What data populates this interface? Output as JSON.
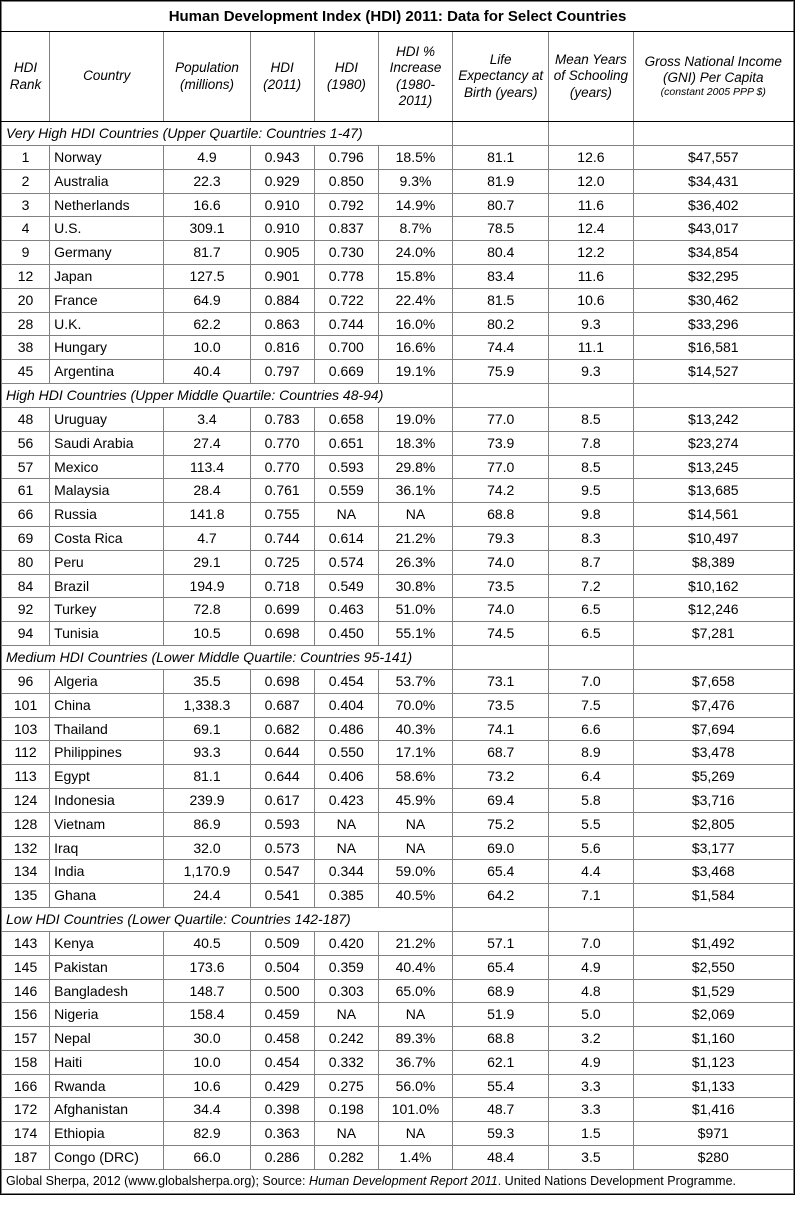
{
  "title": "Human Development Index (HDI) 2011: Data for Select Countries",
  "columns": [
    "HDI Rank",
    "Country",
    "Population (millions)",
    "HDI (2011)",
    "HDI (1980)",
    "HDI % Increase (1980-2011)",
    "Life Expectancy at Birth (years)",
    "Mean Years of Schooling (years)",
    "Gross National Income (GNI) Per Capita"
  ],
  "gni_sub": "(constant 2005 PPP $)",
  "sections": [
    {
      "label": "Very High HDI Countries (Upper Quartile: Countries 1-47)",
      "rows": [
        [
          "1",
          "Norway",
          "4.9",
          "0.943",
          "0.796",
          "18.5%",
          "81.1",
          "12.6",
          "$47,557"
        ],
        [
          "2",
          "Australia",
          "22.3",
          "0.929",
          "0.850",
          "9.3%",
          "81.9",
          "12.0",
          "$34,431"
        ],
        [
          "3",
          "Netherlands",
          "16.6",
          "0.910",
          "0.792",
          "14.9%",
          "80.7",
          "11.6",
          "$36,402"
        ],
        [
          "4",
          "U.S.",
          "309.1",
          "0.910",
          "0.837",
          "8.7%",
          "78.5",
          "12.4",
          "$43,017"
        ],
        [
          "9",
          "Germany",
          "81.7",
          "0.905",
          "0.730",
          "24.0%",
          "80.4",
          "12.2",
          "$34,854"
        ],
        [
          "12",
          "Japan",
          "127.5",
          "0.901",
          "0.778",
          "15.8%",
          "83.4",
          "11.6",
          "$32,295"
        ],
        [
          "20",
          "France",
          "64.9",
          "0.884",
          "0.722",
          "22.4%",
          "81.5",
          "10.6",
          "$30,462"
        ],
        [
          "28",
          "U.K.",
          "62.2",
          "0.863",
          "0.744",
          "16.0%",
          "80.2",
          "9.3",
          "$33,296"
        ],
        [
          "38",
          "Hungary",
          "10.0",
          "0.816",
          "0.700",
          "16.6%",
          "74.4",
          "11.1",
          "$16,581"
        ],
        [
          "45",
          "Argentina",
          "40.4",
          "0.797",
          "0.669",
          "19.1%",
          "75.9",
          "9.3",
          "$14,527"
        ]
      ]
    },
    {
      "label": "High HDI Countries (Upper Middle Quartile: Countries 48-94)",
      "rows": [
        [
          "48",
          "Uruguay",
          "3.4",
          "0.783",
          "0.658",
          "19.0%",
          "77.0",
          "8.5",
          "$13,242"
        ],
        [
          "56",
          "Saudi Arabia",
          "27.4",
          "0.770",
          "0.651",
          "18.3%",
          "73.9",
          "7.8",
          "$23,274"
        ],
        [
          "57",
          "Mexico",
          "113.4",
          "0.770",
          "0.593",
          "29.8%",
          "77.0",
          "8.5",
          "$13,245"
        ],
        [
          "61",
          "Malaysia",
          "28.4",
          "0.761",
          "0.559",
          "36.1%",
          "74.2",
          "9.5",
          "$13,685"
        ],
        [
          "66",
          "Russia",
          "141.8",
          "0.755",
          "NA",
          "NA",
          "68.8",
          "9.8",
          "$14,561"
        ],
        [
          "69",
          "Costa Rica",
          "4.7",
          "0.744",
          "0.614",
          "21.2%",
          "79.3",
          "8.3",
          "$10,497"
        ],
        [
          "80",
          "Peru",
          "29.1",
          "0.725",
          "0.574",
          "26.3%",
          "74.0",
          "8.7",
          "$8,389"
        ],
        [
          "84",
          "Brazil",
          "194.9",
          "0.718",
          "0.549",
          "30.8%",
          "73.5",
          "7.2",
          "$10,162"
        ],
        [
          "92",
          "Turkey",
          "72.8",
          "0.699",
          "0.463",
          "51.0%",
          "74.0",
          "6.5",
          "$12,246"
        ],
        [
          "94",
          "Tunisia",
          "10.5",
          "0.698",
          "0.450",
          "55.1%",
          "74.5",
          "6.5",
          "$7,281"
        ]
      ]
    },
    {
      "label": "Medium HDI Countries (Lower Middle Quartile: Countries 95-141)",
      "rows": [
        [
          "96",
          "Algeria",
          "35.5",
          "0.698",
          "0.454",
          "53.7%",
          "73.1",
          "7.0",
          "$7,658"
        ],
        [
          "101",
          "China",
          "1,338.3",
          "0.687",
          "0.404",
          "70.0%",
          "73.5",
          "7.5",
          "$7,476"
        ],
        [
          "103",
          "Thailand",
          "69.1",
          "0.682",
          "0.486",
          "40.3%",
          "74.1",
          "6.6",
          "$7,694"
        ],
        [
          "112",
          "Philippines",
          "93.3",
          "0.644",
          "0.550",
          "17.1%",
          "68.7",
          "8.9",
          "$3,478"
        ],
        [
          "113",
          "Egypt",
          "81.1",
          "0.644",
          "0.406",
          "58.6%",
          "73.2",
          "6.4",
          "$5,269"
        ],
        [
          "124",
          "Indonesia",
          "239.9",
          "0.617",
          "0.423",
          "45.9%",
          "69.4",
          "5.8",
          "$3,716"
        ],
        [
          "128",
          "Vietnam",
          "86.9",
          "0.593",
          "NA",
          "NA",
          "75.2",
          "5.5",
          "$2,805"
        ],
        [
          "132",
          "Iraq",
          "32.0",
          "0.573",
          "NA",
          "NA",
          "69.0",
          "5.6",
          "$3,177"
        ],
        [
          "134",
          "India",
          "1,170.9",
          "0.547",
          "0.344",
          "59.0%",
          "65.4",
          "4.4",
          "$3,468"
        ],
        [
          "135",
          "Ghana",
          "24.4",
          "0.541",
          "0.385",
          "40.5%",
          "64.2",
          "7.1",
          "$1,584"
        ]
      ]
    },
    {
      "label": "Low HDI Countries (Lower Quartile: Countries 142-187)",
      "rows": [
        [
          "143",
          "Kenya",
          "40.5",
          "0.509",
          "0.420",
          "21.2%",
          "57.1",
          "7.0",
          "$1,492"
        ],
        [
          "145",
          "Pakistan",
          "173.6",
          "0.504",
          "0.359",
          "40.4%",
          "65.4",
          "4.9",
          "$2,550"
        ],
        [
          "146",
          "Bangladesh",
          "148.7",
          "0.500",
          "0.303",
          "65.0%",
          "68.9",
          "4.8",
          "$1,529"
        ],
        [
          "156",
          "Nigeria",
          "158.4",
          "0.459",
          "NA",
          "NA",
          "51.9",
          "5.0",
          "$2,069"
        ],
        [
          "157",
          "Nepal",
          "30.0",
          "0.458",
          "0.242",
          "89.3%",
          "68.8",
          "3.2",
          "$1,160"
        ],
        [
          "158",
          "Haiti",
          "10.0",
          "0.454",
          "0.332",
          "36.7%",
          "62.1",
          "4.9",
          "$1,123"
        ],
        [
          "166",
          "Rwanda",
          "10.6",
          "0.429",
          "0.275",
          "56.0%",
          "55.4",
          "3.3",
          "$1,133"
        ],
        [
          "172",
          "Afghanistan",
          "34.4",
          "0.398",
          "0.198",
          "101.0%",
          "48.7",
          "3.3",
          "$1,416"
        ],
        [
          "174",
          "Ethiopia",
          "82.9",
          "0.363",
          "NA",
          "NA",
          "59.3",
          "1.5",
          "$971"
        ],
        [
          "187",
          "Congo (DRC)",
          "66.0",
          "0.286",
          "0.282",
          "1.4%",
          "48.4",
          "3.5",
          "$280"
        ]
      ]
    }
  ],
  "footer_plain1": "Global Sherpa, 2012 (www.globalsherpa.org); Source: ",
  "footer_italic": "Human Development Report 2011",
  "footer_plain2": ". United Nations Development Programme."
}
